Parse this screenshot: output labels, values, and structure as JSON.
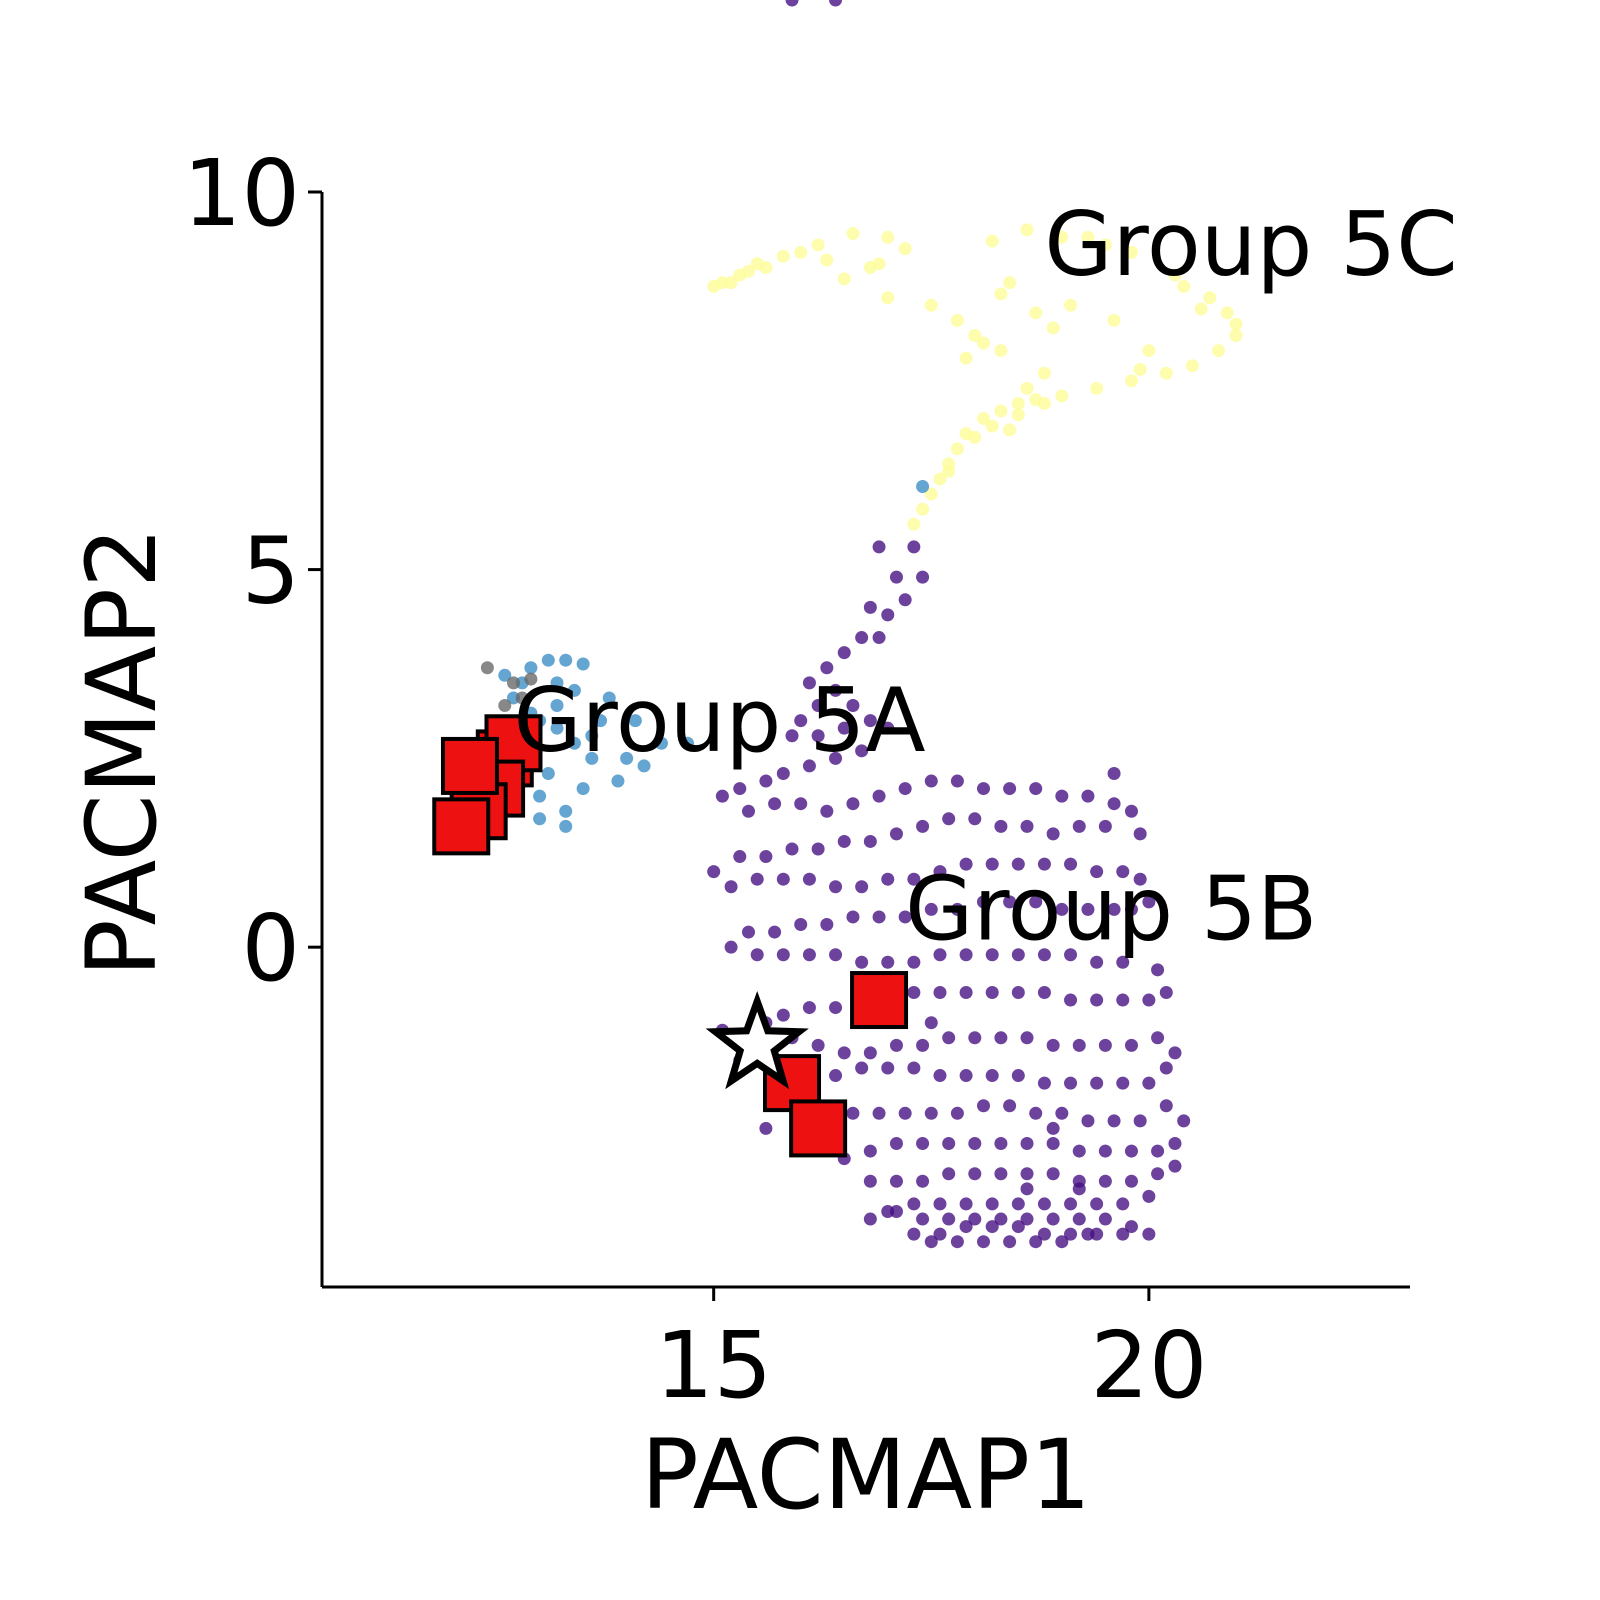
{
  "chart_data": {
    "type": "scatter",
    "title": "",
    "xlabel": "PACMAP1",
    "ylabel": "PACMAP2",
    "xlim": [
      10.5,
      23.0
    ],
    "ylim": [
      -4.5,
      10.0
    ],
    "xticks": [
      15,
      20
    ],
    "yticks": [
      0,
      5,
      10
    ],
    "xtick_labels": [
      "15",
      "20"
    ],
    "ytick_labels": [
      "0",
      "5",
      "10"
    ],
    "grid": false,
    "legend": "none",
    "annotations": [
      {
        "text": "Group 5A",
        "x": 12.7,
        "y": 2.6
      },
      {
        "text": "Group 5B",
        "x": 17.2,
        "y": 0.1
      },
      {
        "text": "Group 5C",
        "x": 18.8,
        "y": 8.9
      }
    ],
    "series": [
      {
        "color": "#fdfd96",
        "marker": "circle",
        "points_x": [
          19.0,
          18.6,
          19.3,
          18.2,
          19.8,
          20.3,
          20.7,
          20.9,
          21.0,
          20.8,
          20.5,
          20.2,
          19.8,
          19.4,
          19.0,
          18.7,
          18.5,
          18.3,
          18.1,
          17.9,
          17.8,
          17.7,
          17.6,
          17.5,
          17.4,
          17.3,
          18.4,
          17.0,
          17.5,
          17.8,
          18.0,
          18.3,
          18.1,
          17.9,
          18.2,
          18.5,
          18.4,
          18.6,
          18.8,
          19.1,
          18.9,
          19.6,
          20.0,
          16.8,
          16.3,
          16.0,
          15.6,
          15.3,
          15.1,
          15.0,
          15.4,
          15.8,
          16.2,
          16.6,
          17.0,
          17.2,
          16.9,
          19.5,
          20.4,
          21.0,
          20.6,
          19.9,
          18.8,
          18.0,
          17.7,
          16.5,
          15.5,
          15.2,
          18.3,
          18.7
        ],
        "points_y": [
          9.4,
          9.5,
          9.4,
          9.35,
          9.2,
          8.9,
          8.6,
          8.4,
          8.1,
          7.9,
          7.7,
          7.6,
          7.5,
          7.4,
          7.3,
          7.25,
          7.2,
          7.1,
          7.0,
          6.8,
          6.6,
          6.4,
          6.2,
          6.0,
          5.8,
          5.6,
          8.8,
          8.6,
          8.5,
          8.3,
          8.1,
          7.9,
          8.0,
          7.8,
          6.9,
          7.05,
          6.85,
          7.4,
          7.2,
          8.5,
          8.2,
          8.3,
          7.9,
          9.0,
          9.1,
          9.2,
          9.0,
          8.9,
          8.8,
          8.75,
          8.95,
          9.15,
          9.3,
          9.45,
          9.4,
          9.25,
          9.05,
          9.3,
          8.75,
          8.25,
          8.45,
          7.65,
          7.6,
          6.75,
          6.3,
          8.85,
          9.05,
          8.8,
          8.65,
          8.4
        ]
      },
      {
        "color": "#3a8cc4",
        "marker": "circle",
        "points_x": [
          12.6,
          12.9,
          13.1,
          13.3,
          13.5,
          13.8,
          14.1,
          14.4,
          14.7,
          13.0,
          13.2,
          13.4,
          13.7,
          14.0,
          12.7,
          12.9,
          13.2,
          13.4,
          13.6,
          12.8,
          13.0,
          13.3,
          13.1,
          13.5,
          12.6,
          12.7,
          13.0,
          13.3,
          14.2,
          13.9,
          17.4,
          12.8,
          13.6,
          13.2
        ],
        "points_y": [
          3.6,
          3.7,
          3.8,
          3.8,
          3.75,
          3.3,
          3.0,
          2.7,
          2.7,
          3.0,
          3.2,
          3.4,
          3.0,
          2.5,
          3.3,
          3.1,
          2.9,
          2.7,
          2.5,
          2.2,
          2.0,
          1.8,
          2.3,
          2.1,
          2.8,
          2.5,
          1.7,
          1.6,
          2.4,
          2.2,
          6.1,
          3.5,
          2.8,
          3.5
        ]
      },
      {
        "color": "#666666",
        "marker": "circle",
        "points_x": [
          12.4,
          12.7,
          12.9,
          12.6,
          12.8
        ],
        "points_y": [
          3.7,
          3.5,
          3.55,
          3.2,
          3.3
        ]
      },
      {
        "color": "#440d82",
        "marker": "circle",
        "points_x": [
          17.3,
          16.9,
          17.1,
          17.4,
          17.2,
          16.8,
          17.0,
          16.9,
          16.7,
          16.5,
          16.3,
          16.1,
          16.4,
          16.6,
          16.2,
          16.0,
          15.9,
          16.2,
          16.5,
          16.8,
          17.0,
          16.7,
          16.4,
          16.1,
          15.8,
          15.6,
          15.3,
          15.1,
          15.4,
          15.7,
          16.0,
          16.3,
          16.6,
          16.9,
          17.2,
          17.5,
          17.8,
          18.1,
          18.4,
          18.7,
          19.0,
          19.3,
          19.6,
          19.8,
          19.5,
          19.2,
          18.9,
          18.6,
          18.3,
          18.0,
          17.7,
          17.4,
          17.1,
          16.8,
          16.5,
          16.2,
          15.9,
          15.6,
          15.3,
          15.0,
          15.2,
          15.5,
          15.8,
          16.1,
          16.4,
          16.7,
          17.0,
          17.3,
          17.6,
          17.9,
          18.2,
          18.5,
          18.8,
          19.1,
          19.4,
          19.7,
          19.9,
          20.0,
          19.8,
          19.6,
          19.3,
          19.0,
          18.7,
          18.4,
          18.1,
          17.8,
          17.5,
          17.2,
          16.9,
          16.6,
          16.3,
          16.0,
          15.7,
          15.4,
          15.2,
          15.5,
          15.8,
          16.1,
          16.4,
          16.7,
          17.0,
          17.3,
          17.6,
          17.9,
          18.2,
          18.5,
          18.8,
          19.1,
          19.4,
          19.7,
          20.1,
          20.2,
          20.0,
          19.7,
          19.4,
          19.1,
          18.8,
          18.5,
          18.2,
          17.9,
          17.6,
          17.3,
          17.0,
          16.7,
          16.4,
          16.1,
          15.8,
          15.6,
          15.9,
          16.2,
          16.5,
          16.8,
          17.1,
          17.4,
          17.7,
          18.0,
          18.3,
          18.6,
          18.9,
          19.2,
          19.5,
          19.8,
          20.1,
          20.3,
          20.2,
          20.0,
          19.7,
          19.4,
          19.1,
          18.8,
          18.5,
          18.2,
          17.9,
          17.6,
          17.3,
          17.0,
          16.7,
          16.4,
          16.1,
          16.3,
          16.6,
          16.9,
          17.2,
          17.5,
          17.8,
          18.1,
          18.4,
          18.7,
          19.0,
          19.3,
          19.6,
          19.9,
          20.2,
          20.4,
          20.3,
          20.1,
          19.8,
          19.5,
          19.2,
          18.9,
          18.6,
          18.3,
          18.0,
          17.7,
          17.4,
          17.1,
          16.8,
          16.5,
          16.8,
          17.1,
          17.4,
          17.7,
          18.0,
          18.3,
          18.6,
          18.9,
          19.2,
          19.5,
          19.8,
          20.1,
          20.3,
          20.0,
          19.7,
          19.4,
          19.1,
          18.8,
          18.5,
          18.2,
          17.9,
          17.6,
          17.3,
          17.0,
          16.8,
          17.1,
          17.4,
          17.7,
          18.0,
          18.3,
          18.6,
          18.9,
          19.2,
          19.5,
          19.8,
          20.0,
          19.7,
          19.4,
          19.1,
          18.8,
          18.5,
          18.2,
          17.9,
          17.6,
          17.3,
          17.5,
          17.8,
          18.1,
          18.4,
          18.7,
          19.0,
          19.3,
          19.6,
          19.9,
          15.1,
          15.3,
          15.6,
          19.2,
          18.9,
          18.6,
          17.5,
          16.4,
          15.9
        ],
        "points_y": [
          5.3,
          5.3,
          4.9,
          4.9,
          4.6,
          4.5,
          4.4,
          4.1,
          4.1,
          3.9,
          3.7,
          3.5,
          3.4,
          3.2,
          3.2,
          3.0,
          2.8,
          2.8,
          2.9,
          3.0,
          2.9,
          2.6,
          2.5,
          2.4,
          2.3,
          2.2,
          2.1,
          2.0,
          1.8,
          1.9,
          1.9,
          1.8,
          1.9,
          2.0,
          2.1,
          2.2,
          2.2,
          2.1,
          2.1,
          2.1,
          2.0,
          2.0,
          1.9,
          1.8,
          1.6,
          1.6,
          1.5,
          1.6,
          1.6,
          1.7,
          1.7,
          1.6,
          1.5,
          1.4,
          1.4,
          1.3,
          1.3,
          1.2,
          1.2,
          1.0,
          0.8,
          0.9,
          0.9,
          0.9,
          0.8,
          0.8,
          0.9,
          0.9,
          1.0,
          1.1,
          1.1,
          1.1,
          1.1,
          1.1,
          1.0,
          1.0,
          0.9,
          0.6,
          0.5,
          0.5,
          0.5,
          0.5,
          0.6,
          0.6,
          0.6,
          0.5,
          0.5,
          0.4,
          0.4,
          0.4,
          0.3,
          0.3,
          0.2,
          0.2,
          0.0,
          -0.1,
          -0.1,
          -0.1,
          -0.1,
          -0.2,
          -0.2,
          -0.2,
          -0.1,
          -0.1,
          -0.1,
          -0.1,
          -0.1,
          -0.1,
          -0.2,
          -0.2,
          -0.3,
          -0.6,
          -0.7,
          -0.7,
          -0.7,
          -0.7,
          -0.6,
          -0.6,
          -0.6,
          -0.6,
          -0.6,
          -0.6,
          -0.7,
          -0.7,
          -0.8,
          -0.8,
          -0.9,
          -1.0,
          -1.2,
          -1.3,
          -1.4,
          -1.4,
          -1.3,
          -1.3,
          -1.2,
          -1.2,
          -1.2,
          -1.2,
          -1.3,
          -1.3,
          -1.3,
          -1.3,
          -1.2,
          -1.4,
          -1.6,
          -1.8,
          -1.8,
          -1.8,
          -1.8,
          -1.8,
          -1.7,
          -1.7,
          -1.7,
          -1.7,
          -1.6,
          -1.6,
          -1.6,
          -1.7,
          -2.0,
          -2.2,
          -2.2,
          -2.2,
          -2.2,
          -2.2,
          -2.2,
          -2.1,
          -2.1,
          -2.2,
          -2.2,
          -2.3,
          -2.3,
          -2.3,
          -2.1,
          -2.3,
          -2.6,
          -2.7,
          -2.7,
          -2.7,
          -2.7,
          -2.6,
          -2.6,
          -2.6,
          -2.6,
          -2.6,
          -2.6,
          -2.6,
          -2.7,
          -2.8,
          -3.1,
          -3.1,
          -3.1,
          -3.0,
          -3.0,
          -3.0,
          -3.0,
          -3.0,
          -3.1,
          -3.1,
          -3.1,
          -3.0,
          -2.9,
          -3.3,
          -3.4,
          -3.4,
          -3.4,
          -3.4,
          -3.4,
          -3.4,
          -3.4,
          -3.4,
          -3.4,
          -3.5,
          -3.6,
          -3.5,
          -3.6,
          -3.6,
          -3.6,
          -3.6,
          -3.6,
          -3.6,
          -3.6,
          -3.6,
          -3.7,
          -3.8,
          -3.8,
          -3.8,
          -3.8,
          -3.8,
          -3.7,
          -3.7,
          -3.7,
          -3.8,
          -3.8,
          -3.9,
          -3.9,
          -3.9,
          -3.9,
          -3.9,
          -3.9,
          -3.8,
          2.3,
          1.5,
          -1.1,
          -1.5,
          -2.4,
          -3.2,
          -2.4,
          -3.2,
          -1.0
        ]
      },
      {
        "color": "#ee1111",
        "marker": "square",
        "points_x": [
          12.4,
          12.6,
          12.7,
          12.5,
          12.3,
          12.1,
          12.2,
          16.9,
          15.9,
          16.2
        ],
        "points_y": [
          2.2,
          2.5,
          2.7,
          2.1,
          1.8,
          1.6,
          2.4,
          -0.7,
          -1.8,
          -2.4
        ]
      },
      {
        "color": "#ffffff",
        "marker": "star",
        "points_x": [
          15.5
        ],
        "points_y": [
          -1.3
        ]
      }
    ]
  }
}
